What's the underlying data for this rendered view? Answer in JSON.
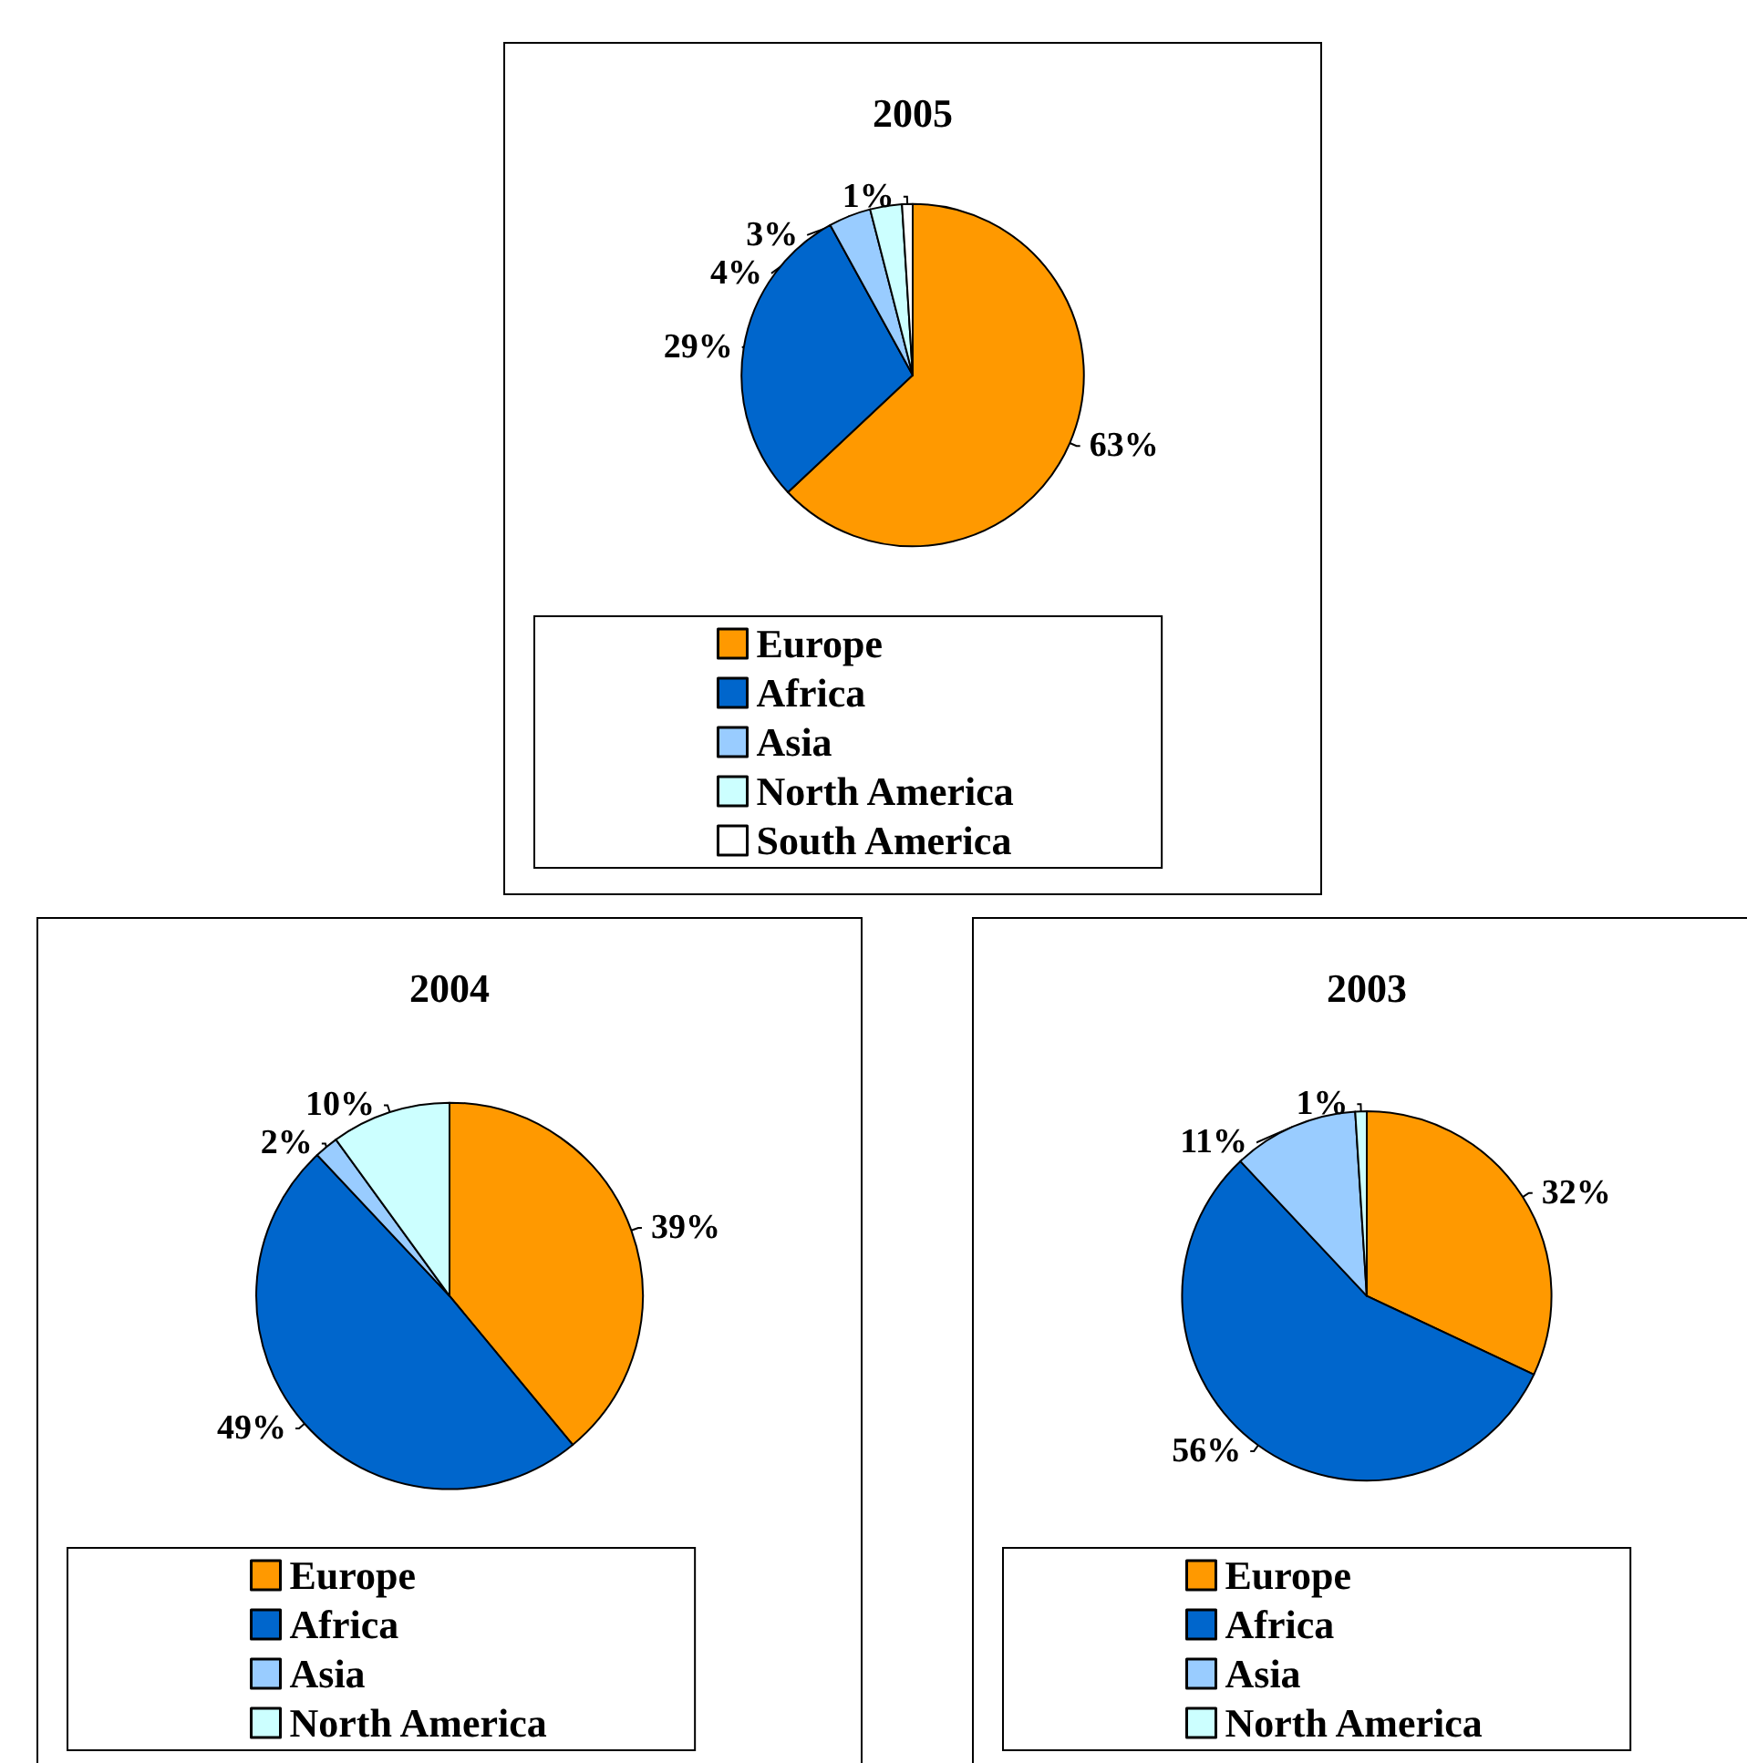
{
  "chart_data": [
    {
      "type": "pie",
      "title": "2005",
      "categories": [
        "Europe",
        "Africa",
        "Asia",
        "North America",
        "South America"
      ],
      "values": [
        63,
        29,
        4,
        3,
        1
      ],
      "value_labels": [
        "63%",
        "29%",
        "4%",
        "3%",
        "1%"
      ],
      "colors": [
        "#ff9900",
        "#0066cc",
        "#99ccff",
        "#ccffff",
        "#ffffff"
      ],
      "legend": "bottom"
    },
    {
      "type": "pie",
      "title": "2004",
      "categories": [
        "Europe",
        "Africa",
        "Asia",
        "North America"
      ],
      "values": [
        39,
        49,
        2,
        10
      ],
      "value_labels": [
        "39%",
        "49%",
        "2%",
        "10%"
      ],
      "colors": [
        "#ff9900",
        "#0066cc",
        "#99ccff",
        "#ccffff"
      ],
      "legend": "bottom"
    },
    {
      "type": "pie",
      "title": "2003",
      "categories": [
        "Europe",
        "Africa",
        "Asia",
        "North America"
      ],
      "values": [
        32,
        56,
        11,
        1
      ],
      "value_labels": [
        "32%",
        "56%",
        "11%",
        "1%"
      ],
      "colors": [
        "#ff9900",
        "#0066cc",
        "#99ccff",
        "#ccffff"
      ],
      "legend": "bottom"
    }
  ]
}
